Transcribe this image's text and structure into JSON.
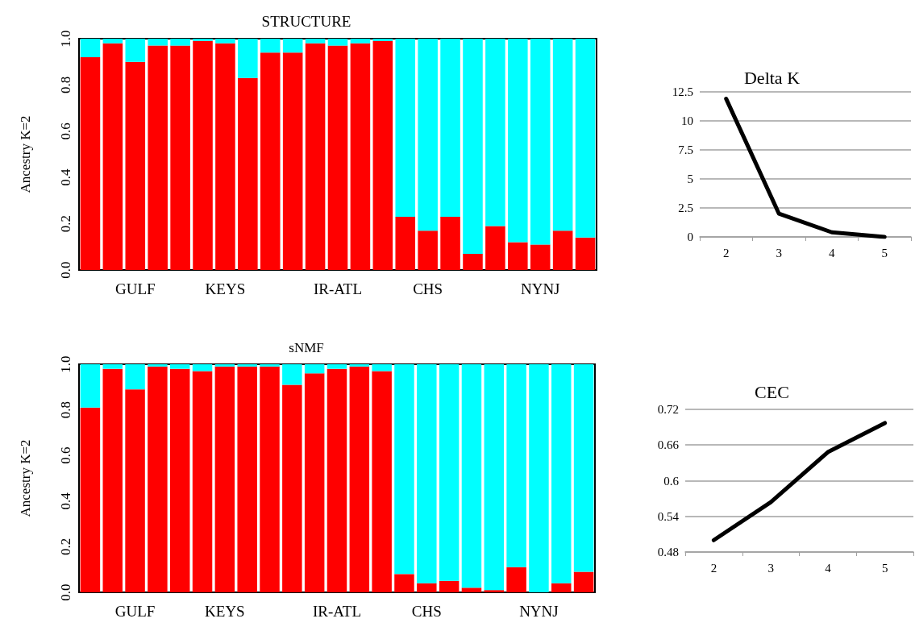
{
  "chart_data": [
    {
      "type": "bar",
      "title": "STRUCTURE",
      "ylabel": "Ancestry K=2",
      "stacked": true,
      "categories": [
        null,
        null,
        "GULF",
        null,
        null,
        null,
        "KEYS",
        null,
        null,
        null,
        null,
        "IR-ATL",
        null,
        null,
        null,
        "CHS",
        null,
        null,
        null,
        null,
        "NYNJ",
        null,
        null
      ],
      "series": [
        {
          "color": "#ff0000",
          "values": [
            0.92,
            0.98,
            0.9,
            0.97,
            0.97,
            0.99,
            0.98,
            0.83,
            0.94,
            0.94,
            0.98,
            0.97,
            0.98,
            0.99,
            0.23,
            0.17,
            0.23,
            0.07,
            0.19,
            0.12,
            0.11,
            0.17,
            0.14
          ]
        },
        {
          "color": "#00ffff",
          "values": [
            0.08,
            0.02,
            0.1,
            0.03,
            0.03,
            0.01,
            0.02,
            0.17,
            0.06,
            0.06,
            0.02,
            0.03,
            0.02,
            0.01,
            0.77,
            0.83,
            0.77,
            0.93,
            0.81,
            0.88,
            0.89,
            0.83,
            0.86
          ]
        }
      ],
      "ylim": [
        0,
        1
      ],
      "yticks": [
        {
          "value": 0,
          "label": "0.0"
        },
        {
          "value": 0.2,
          "label": "0.2"
        },
        {
          "value": 0.4,
          "label": "0.4"
        },
        {
          "value": 0.6,
          "label": "0.6"
        },
        {
          "value": 0.8,
          "label": "0.8"
        },
        {
          "value": 1,
          "label": "1.0"
        }
      ]
    },
    {
      "type": "line",
      "title": "Delta K",
      "categories": [
        "2",
        "3",
        "4",
        "5"
      ],
      "series": [
        {
          "color": "#000000",
          "values": [
            11.9,
            2.0,
            0.4,
            0
          ]
        }
      ],
      "ylim": [
        0,
        12.5
      ],
      "yticks": [
        0,
        2.5,
        5,
        7.5,
        10,
        12.5
      ],
      "grid": "y",
      "marker": "none",
      "line_style": "solid"
    },
    {
      "type": "bar",
      "title": "sNMF",
      "ylabel": "Ancestry K=2",
      "stacked": true,
      "categories": [
        null,
        null,
        "GULF",
        null,
        null,
        null,
        "KEYS",
        null,
        null,
        null,
        null,
        "IR-ATL",
        null,
        null,
        null,
        "CHS",
        null,
        null,
        null,
        null,
        "NYNJ",
        null,
        null
      ],
      "series": [
        {
          "color": "#ff0000",
          "values": [
            0.81,
            0.98,
            0.89,
            0.99,
            0.98,
            0.97,
            0.99,
            0.99,
            0.99,
            0.91,
            0.96,
            0.98,
            0.99,
            0.97,
            0.08,
            0.04,
            0.05,
            0.02,
            0.01,
            0.11,
            0.0,
            0.04,
            0.09
          ]
        },
        {
          "color": "#00ffff",
          "values": [
            0.19,
            0.02,
            0.11,
            0.01,
            0.02,
            0.03,
            0.01,
            0.01,
            0.01,
            0.09,
            0.04,
            0.02,
            0.01,
            0.03,
            0.92,
            0.96,
            0.95,
            0.98,
            0.99,
            0.89,
            1.0,
            0.96,
            0.91
          ]
        }
      ],
      "ylim": [
        0,
        1
      ],
      "yticks": [
        {
          "value": 0,
          "label": "0.0"
        },
        {
          "value": 0.2,
          "label": "0.2"
        },
        {
          "value": 0.4,
          "label": "0.4"
        },
        {
          "value": 0.6,
          "label": "0.6"
        },
        {
          "value": 0.8,
          "label": "0.8"
        },
        {
          "value": 1,
          "label": "1.0"
        }
      ]
    },
    {
      "type": "line",
      "title": "CEC",
      "categories": [
        "2",
        "3",
        "4",
        "5"
      ],
      "series": [
        {
          "color": "#000000",
          "values": [
            0.5,
            0.564,
            0.648,
            0.697
          ]
        }
      ],
      "ylim": [
        0.48,
        0.72
      ],
      "yticks": [
        0.48,
        0.54,
        0.6,
        0.66,
        0.72
      ],
      "grid": "y",
      "marker": "none",
      "line_style": "solid"
    }
  ]
}
